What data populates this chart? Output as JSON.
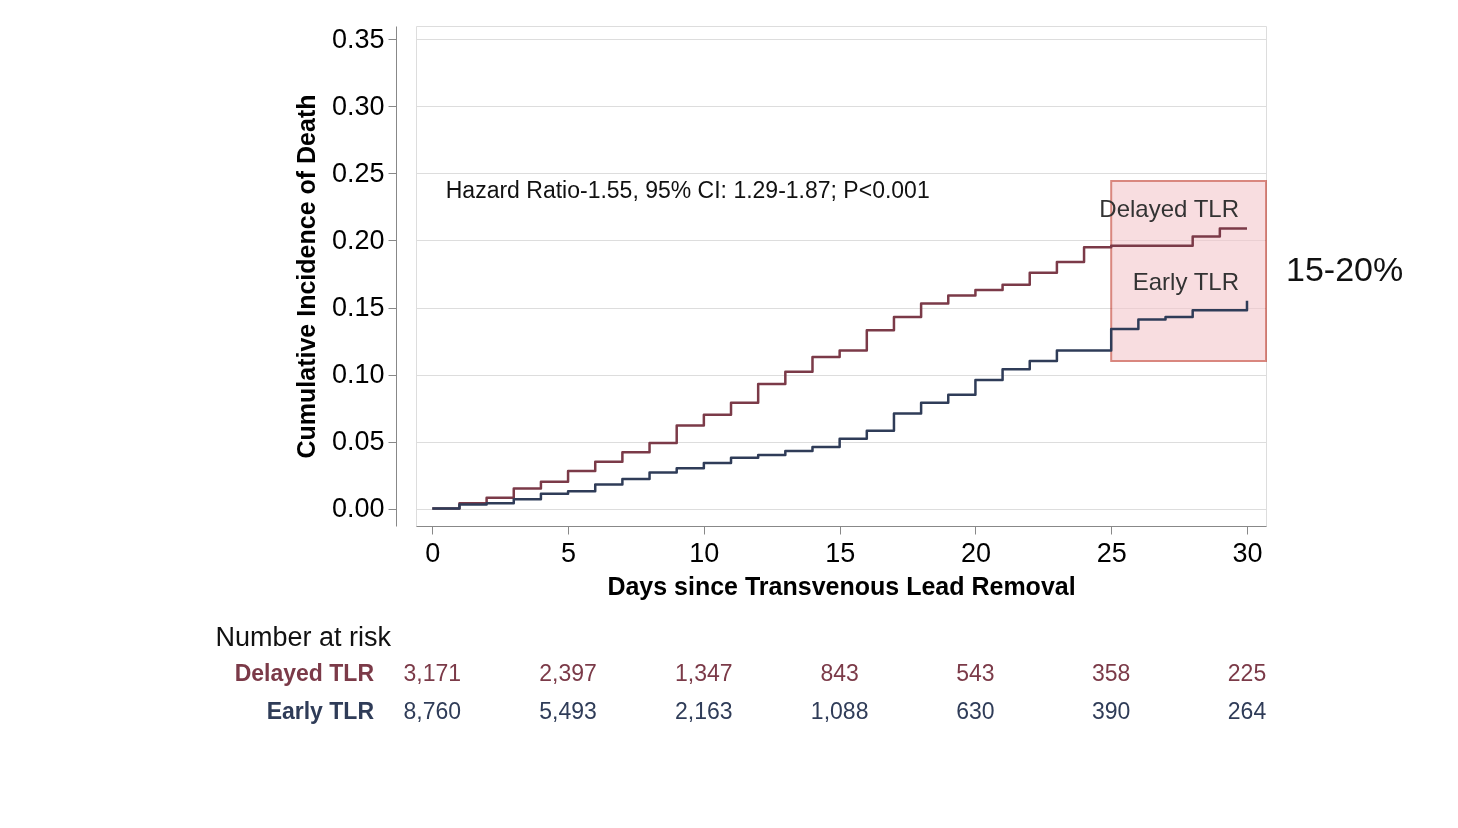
{
  "chart_data": {
    "type": "step",
    "xlabel": "Days since Transvenous Lead Removal",
    "ylabel": "Cumulative Incidence of Death",
    "x": [
      0,
      1,
      2,
      3,
      4,
      5,
      6,
      7,
      8,
      9,
      10,
      11,
      12,
      13,
      14,
      15,
      16,
      17,
      18,
      19,
      20,
      21,
      22,
      23,
      24,
      25,
      26,
      27,
      28,
      29,
      30
    ],
    "series": [
      {
        "name": "Delayed TLR",
        "color": "#7b3a48",
        "values": [
          0,
          0.004,
          0.008,
          0.015,
          0.02,
          0.028,
          0.035,
          0.042,
          0.049,
          0.062,
          0.07,
          0.079,
          0.093,
          0.102,
          0.113,
          0.118,
          0.133,
          0.143,
          0.153,
          0.159,
          0.163,
          0.167,
          0.176,
          0.184,
          0.195,
          0.196,
          0.196,
          0.196,
          0.203,
          0.209,
          0.209
        ]
      },
      {
        "name": "Early TLR",
        "color": "#2f3c58",
        "values": [
          0,
          0.003,
          0.004,
          0.007,
          0.011,
          0.013,
          0.018,
          0.022,
          0.027,
          0.03,
          0.034,
          0.038,
          0.04,
          0.043,
          0.046,
          0.052,
          0.058,
          0.071,
          0.079,
          0.085,
          0.096,
          0.104,
          0.11,
          0.118,
          0.118,
          0.134,
          0.141,
          0.143,
          0.148,
          0.148,
          0.155
        ]
      }
    ],
    "xlim": [
      -0.6,
      30.7
    ],
    "ylim": [
      -0.013,
      0.36
    ],
    "xticks": [
      0,
      5,
      10,
      15,
      20,
      25,
      30
    ],
    "yticks": [
      {
        "value": 0,
        "label": "0.00"
      },
      {
        "value": 0.05,
        "label": "0.05"
      },
      {
        "value": 0.1,
        "label": "0.10"
      },
      {
        "value": 0.15,
        "label": "0.15"
      },
      {
        "value": 0.2,
        "label": "0.20"
      },
      {
        "value": 0.25,
        "label": "0.25"
      },
      {
        "value": 0.3,
        "label": "0.30"
      },
      {
        "value": 0.35,
        "label": "0.35"
      }
    ],
    "grid": "y",
    "bands": [
      {
        "axis": "x",
        "from": 25,
        "to": 30.7,
        "label": "15-20%",
        "color": "#f4c7cc"
      }
    ],
    "annotations": [
      "Hazard Ratio-1.55, 95% CI: 1.29-1.87; P<0.001",
      "Number at risk",
      "3,171",
      "2,397",
      "1,347",
      "843",
      "543",
      "358",
      "225",
      "8,760",
      "5,493",
      "2,163",
      "1,088",
      "630",
      "390",
      "264"
    ]
  }
}
